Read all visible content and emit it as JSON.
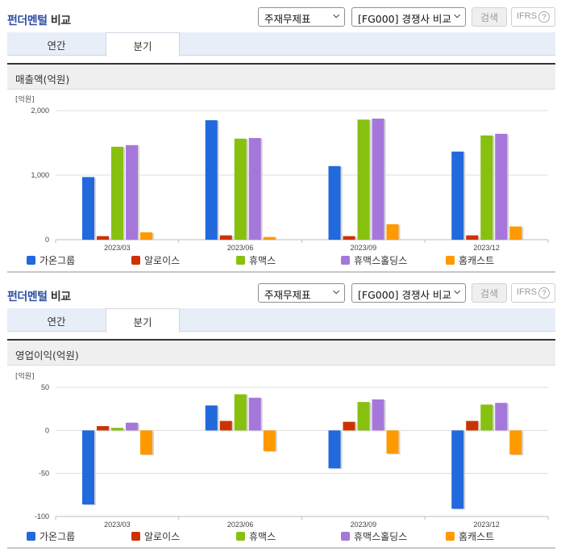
{
  "sections": [
    {
      "title_accent": "펀더멘털",
      "title_rest": "비교",
      "select_statement": "주재무제표",
      "select_group": "[FG000] 경쟁사 비교",
      "search_button": "검색",
      "ifrs_button": "IFRS",
      "help_icon": "?",
      "tabs": [
        "연간",
        "분기"
      ],
      "active_tab": "분기",
      "chart_title": "매출액(억원)",
      "unit": "[억원]"
    },
    {
      "title_accent": "펀더멘털",
      "title_rest": "비교",
      "select_statement": "주재무제표",
      "select_group": "[FG000] 경쟁사 비교",
      "search_button": "검색",
      "ifrs_button": "IFRS",
      "help_icon": "?",
      "tabs": [
        "연간",
        "분기"
      ],
      "active_tab": "분기",
      "chart_title": "영업이익(억원)",
      "unit": "[억원]"
    }
  ],
  "legend": [
    {
      "name": "가온그룹",
      "color": "#2169dc"
    },
    {
      "name": "알로이스",
      "color": "#cc3300"
    },
    {
      "name": "휴맥스",
      "color": "#88c010"
    },
    {
      "name": "휴맥스홀딩스",
      "color": "#a677db"
    },
    {
      "name": "홈캐스트",
      "color": "#ff9900"
    }
  ],
  "chart_data": [
    {
      "type": "bar",
      "title": "매출액(억원)",
      "ylabel": "[억원]",
      "xlabel": "",
      "categories": [
        "2023/03",
        "2023/06",
        "2023/09",
        "2023/12"
      ],
      "ylim": [
        0,
        2000
      ],
      "yticks": [
        0,
        1000,
        2000
      ],
      "ytick_labels": [
        "0",
        "1,000",
        "2,000"
      ],
      "grid": true,
      "legend_position": "bottom",
      "series": [
        {
          "name": "가온그룹",
          "color": "#2169dc",
          "values": [
            970,
            1850,
            1140,
            1365
          ]
        },
        {
          "name": "알로이스",
          "color": "#cc3300",
          "values": [
            55,
            67,
            55,
            67
          ]
        },
        {
          "name": "휴맥스",
          "color": "#88c010",
          "values": [
            1440,
            1565,
            1860,
            1615
          ]
        },
        {
          "name": "휴맥스홀딩스",
          "color": "#a677db",
          "values": [
            1465,
            1575,
            1875,
            1640
          ]
        },
        {
          "name": "홈캐스트",
          "color": "#ff9900",
          "values": [
            115,
            42,
            240,
            205
          ]
        }
      ]
    },
    {
      "type": "bar",
      "title": "영업이익(억원)",
      "ylabel": "[억원]",
      "xlabel": "",
      "categories": [
        "2023/03",
        "2023/06",
        "2023/09",
        "2023/12"
      ],
      "ylim": [
        -100,
        50
      ],
      "yticks": [
        -100,
        -50,
        0,
        50
      ],
      "ytick_labels": [
        "-100",
        "-50",
        "0",
        "50"
      ],
      "grid": true,
      "legend_position": "bottom",
      "series": [
        {
          "name": "가온그룹",
          "color": "#2169dc",
          "values": [
            -86,
            29,
            -44,
            -91
          ]
        },
        {
          "name": "알로이스",
          "color": "#cc3300",
          "values": [
            5,
            11,
            10,
            11
          ]
        },
        {
          "name": "휴맥스",
          "color": "#88c010",
          "values": [
            3,
            42,
            33,
            30
          ]
        },
        {
          "name": "휴맥스홀딩스",
          "color": "#a677db",
          "values": [
            9,
            38,
            36,
            32
          ]
        },
        {
          "name": "홈캐스트",
          "color": "#ff9900",
          "values": [
            -28,
            -24,
            -27,
            -28
          ]
        }
      ]
    }
  ]
}
